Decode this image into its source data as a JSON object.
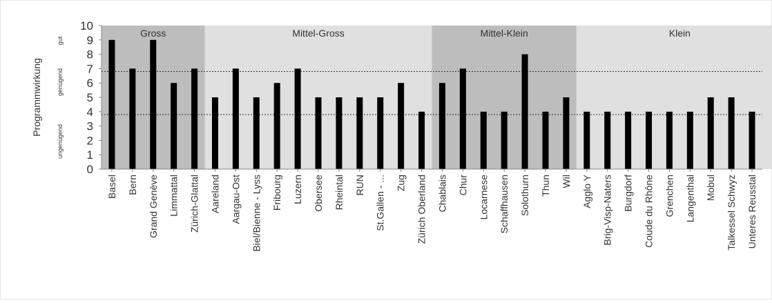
{
  "chart_data": {
    "type": "bar",
    "title": "",
    "xlabel": "",
    "ylabel": "Programmwirkung",
    "rating_labels": [
      "ungenügend",
      "genügend",
      "gut"
    ],
    "ylim": [
      0,
      10
    ],
    "yticks": [
      0,
      1,
      2,
      3,
      4,
      5,
      6,
      7,
      8,
      9,
      10
    ],
    "grid": false,
    "thresholds": [
      3.8,
      6.8
    ],
    "bar_color": "#000000",
    "groups": [
      {
        "label": "Gross",
        "start": 0,
        "end": 4,
        "color": "#bdbdbd"
      },
      {
        "label": "Mittel-Gross",
        "start": 5,
        "end": 15,
        "color": "#e0e0e0"
      },
      {
        "label": "Mittel-Klein",
        "start": 16,
        "end": 22,
        "color": "#bdbdbd"
      },
      {
        "label": "Klein",
        "start": 23,
        "end": 32,
        "color": "#e0e0e0"
      }
    ],
    "categories": [
      "Basel",
      "Bern",
      "Grand Genève",
      "Limmattal",
      "Zürich-Glattal",
      "Aareland",
      "Aargau-Ost",
      "Biel/Bienne - Lyss",
      "Fribourg",
      "Luzern",
      "Obersee",
      "Rheintal",
      "RUN",
      "St.Gallen - ...",
      "Zug",
      "Zürich Oberland",
      "Chablais",
      "Chur",
      "Locarnese",
      "Schaffhausen",
      "Solothurn",
      "Thun",
      "Wil",
      "Agglo Y",
      "Brig-Visp-Naters",
      "Burgdorf",
      "Coude du Rhône",
      "Grenchen",
      "Langenthal",
      "Mobul",
      "Talkessel Schwyz",
      "Unteres Reusstal"
    ],
    "values": [
      9,
      7,
      9,
      6,
      7,
      5,
      7,
      5,
      6,
      7,
      5,
      5,
      5,
      5,
      6,
      4,
      6,
      7,
      4,
      4,
      8,
      4,
      5,
      4,
      4,
      4,
      4,
      4,
      4,
      5,
      5,
      4
    ]
  }
}
